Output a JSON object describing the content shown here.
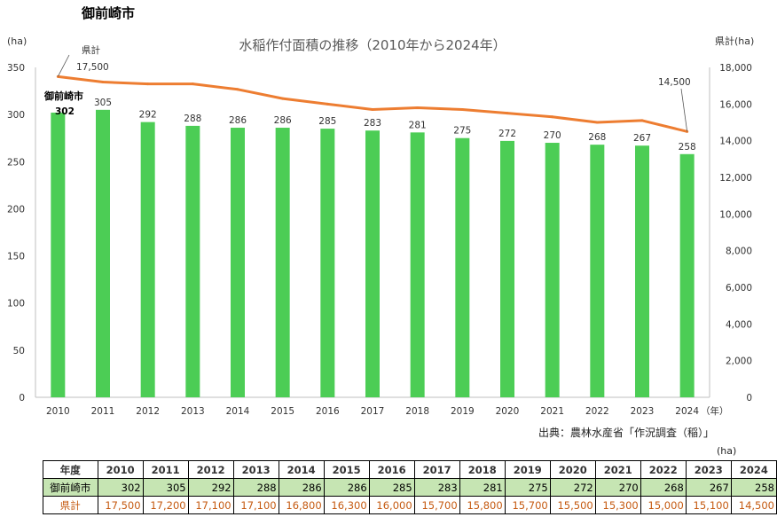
{
  "page_heading": "御前崎市",
  "source_note": "出典：農林水産省「作況調査（稲）」",
  "table": {
    "unit": "(ha)",
    "header_label": "年度",
    "years": [
      "2010",
      "2011",
      "2012",
      "2013",
      "2014",
      "2015",
      "2016",
      "2017",
      "2018",
      "2019",
      "2020",
      "2021",
      "2022",
      "2023",
      "2024"
    ],
    "rows": [
      {
        "label": "御前崎市",
        "values": [
          "302",
          "305",
          "292",
          "288",
          "286",
          "286",
          "285",
          "283",
          "281",
          "275",
          "272",
          "270",
          "268",
          "267",
          "258"
        ]
      },
      {
        "label": "県計",
        "values": [
          "17,500",
          "17,200",
          "17,100",
          "17,100",
          "16,800",
          "16,300",
          "16,000",
          "15,700",
          "15,800",
          "15,700",
          "15,500",
          "15,300",
          "15,000",
          "15,100",
          "14,500"
        ]
      }
    ]
  },
  "chart_data": {
    "type": "bar",
    "title": "水稲作付面積の推移（2010年から2024年）",
    "xlabel": "（年）",
    "ylabel": "(ha)",
    "y2label": "県計(ha)",
    "categories": [
      "2010",
      "2011",
      "2012",
      "2013",
      "2014",
      "2015",
      "2016",
      "2017",
      "2018",
      "2019",
      "2020",
      "2021",
      "2022",
      "2023",
      "2024"
    ],
    "ylim": [
      0,
      350
    ],
    "yticks": [
      0,
      50,
      100,
      150,
      200,
      250,
      300,
      350
    ],
    "y2lim": [
      0,
      18000
    ],
    "y2ticks": [
      "0",
      "2,000",
      "4,000",
      "6,000",
      "8,000",
      "10,000",
      "12,000",
      "14,000",
      "16,000",
      "18,000"
    ],
    "series": [
      {
        "name": "御前崎市",
        "type": "bar",
        "axis": "left",
        "color": "#4ccd55",
        "values": [
          302,
          305,
          292,
          288,
          286,
          286,
          285,
          283,
          281,
          275,
          272,
          270,
          268,
          267,
          258
        ]
      },
      {
        "name": "県計",
        "type": "line",
        "axis": "right",
        "color": "#ed7d31",
        "values": [
          17500,
          17200,
          17100,
          17100,
          16800,
          16300,
          16000,
          15700,
          15800,
          15700,
          15500,
          15300,
          15000,
          15100,
          14500
        ]
      }
    ],
    "annotations": {
      "bar_series_label": "御前崎市",
      "first_bar_value": "302",
      "line_series_label": "県計",
      "line_start_value": "17,500",
      "line_end_value": "14,500"
    },
    "grid": false,
    "legend": "none"
  },
  "colors": {
    "bar": "#4ccd55",
    "line": "#ed7d31",
    "axis": "#bfbfbf",
    "pref_text": "#c55a11",
    "city_row_bg": "#c6e5b3"
  }
}
